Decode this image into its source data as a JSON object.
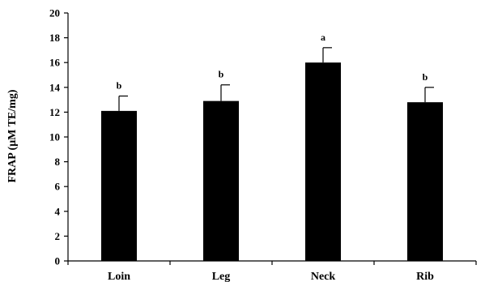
{
  "chart_data": {
    "type": "bar",
    "title": "",
    "xlabel": "",
    "ylabel": "FRAP (μM TE/mg)",
    "ylim": [
      0,
      20
    ],
    "yticks": [
      0,
      2,
      4,
      6,
      8,
      10,
      12,
      14,
      16,
      18,
      20
    ],
    "categories": [
      "Loin",
      "Leg",
      "Neck",
      "Rib"
    ],
    "values": [
      12.1,
      12.9,
      16.0,
      12.8
    ],
    "errors": [
      1.2,
      1.3,
      1.2,
      1.2
    ],
    "significance": [
      "b",
      "b",
      "a",
      "b"
    ],
    "bar_color": "#000000",
    "grid": false,
    "legend": "none"
  }
}
